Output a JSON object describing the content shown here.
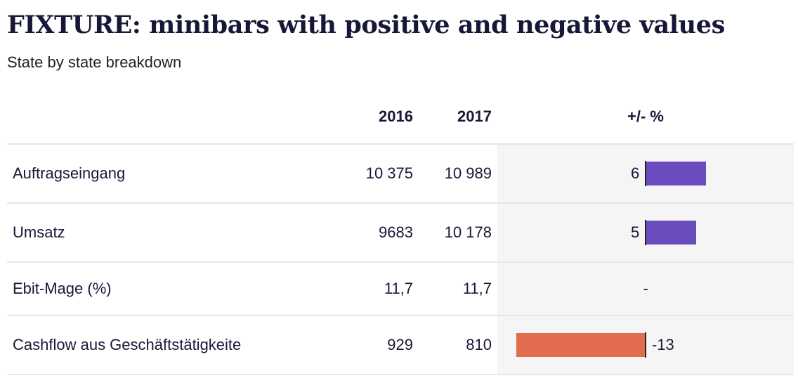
{
  "title": "FIXTURE: minibars with positive and negative values",
  "subtitle": "State by state breakdown",
  "columns": {
    "label": "",
    "c2016": "2016",
    "c2017": "2017",
    "change": "+/- %"
  },
  "colors": {
    "positive": "#6b4cbf",
    "negative": "#e26c4f"
  },
  "chart_data": {
    "type": "table",
    "title": "FIXTURE: minibars with positive and negative values",
    "subtitle": "State by state breakdown",
    "columns": [
      "2016",
      "2017",
      "+/- %"
    ],
    "rows": [
      {
        "label": "Auftragseingang",
        "v2016": "10 375",
        "v2017": "10 989",
        "change_label": "6",
        "change": 6
      },
      {
        "label": "Umsatz",
        "v2016": "9683",
        "v2017": "10 178",
        "change_label": "5",
        "change": 5
      },
      {
        "label": "Ebit-Mage (%)",
        "v2016": "11,7",
        "v2017": "11,7",
        "change_label": "-",
        "change": null
      },
      {
        "label": "Cashflow aus Geschäftstätigkeite",
        "v2016": "929",
        "v2017": "810",
        "change_label": "-13",
        "change": -13
      }
    ],
    "change_range": [
      -13,
      6
    ]
  }
}
